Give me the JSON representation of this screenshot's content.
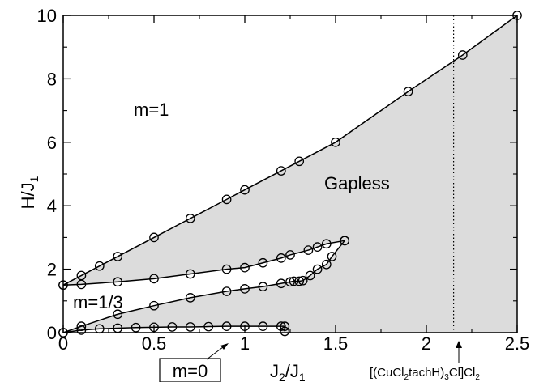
{
  "chart_data": {
    "type": "line",
    "xlabel": {
      "main": "J",
      "sub1": "2",
      "sep": "/J",
      "sub2": "1"
    },
    "ylabel": {
      "main": "H/J",
      "sub": "1"
    },
    "xlim": [
      0,
      2.5
    ],
    "ylim": [
      0,
      10
    ],
    "x_ticks": [
      0,
      0.5,
      1,
      1.5,
      2,
      2.5
    ],
    "x_tick_labels": [
      "0",
      "0.5",
      "1",
      "1.5",
      "2",
      "2.5"
    ],
    "y_ticks": [
      0,
      2,
      4,
      6,
      8,
      10
    ],
    "y_tick_labels": [
      "0",
      "2",
      "4",
      "6",
      "8",
      "10"
    ],
    "grid": false,
    "gapless_fill_color": "#dcdcdc",
    "series": [
      {
        "role": "saturation",
        "points": [
          [
            0,
            1.5
          ],
          [
            0.1,
            1.8
          ],
          [
            0.2,
            2.1
          ],
          [
            0.3,
            2.4
          ],
          [
            0.5,
            3.0
          ],
          [
            0.7,
            3.6
          ],
          [
            0.9,
            4.2
          ],
          [
            1.0,
            4.5
          ],
          [
            1.2,
            5.1
          ],
          [
            1.3,
            5.4
          ],
          [
            1.5,
            6.0
          ],
          [
            1.9,
            7.6
          ],
          [
            2.2,
            8.75
          ],
          [
            2.5,
            10.0
          ]
        ]
      },
      {
        "role": "m13-upper",
        "points": [
          [
            0,
            1.5
          ],
          [
            0.1,
            1.52
          ],
          [
            0.3,
            1.6
          ],
          [
            0.5,
            1.7
          ],
          [
            0.7,
            1.85
          ],
          [
            0.9,
            2.0
          ],
          [
            1.0,
            2.05
          ],
          [
            1.1,
            2.2
          ],
          [
            1.2,
            2.35
          ],
          [
            1.25,
            2.45
          ],
          [
            1.35,
            2.6
          ],
          [
            1.4,
            2.7
          ],
          [
            1.45,
            2.8
          ],
          [
            1.55,
            2.9
          ]
        ]
      },
      {
        "role": "m13-lower",
        "points": [
          [
            0,
            0
          ],
          [
            0.1,
            0.2
          ],
          [
            0.3,
            0.58
          ],
          [
            0.5,
            0.85
          ],
          [
            0.7,
            1.1
          ],
          [
            0.9,
            1.3
          ],
          [
            1.0,
            1.38
          ],
          [
            1.1,
            1.45
          ],
          [
            1.2,
            1.55
          ],
          [
            1.25,
            1.6
          ],
          [
            1.27,
            1.62
          ],
          [
            1.3,
            1.62
          ],
          [
            1.32,
            1.64
          ],
          [
            1.36,
            1.8
          ],
          [
            1.4,
            2.0
          ],
          [
            1.45,
            2.15
          ],
          [
            1.48,
            2.4
          ],
          [
            1.55,
            2.9
          ]
        ]
      },
      {
        "role": "m0",
        "points": [
          [
            0,
            0
          ],
          [
            0.1,
            0.08
          ],
          [
            0.2,
            0.12
          ],
          [
            0.3,
            0.14
          ],
          [
            0.4,
            0.16
          ],
          [
            0.5,
            0.17
          ],
          [
            0.6,
            0.18
          ],
          [
            0.7,
            0.18
          ],
          [
            0.8,
            0.19
          ],
          [
            0.9,
            0.2
          ],
          [
            1.0,
            0.2
          ],
          [
            1.1,
            0.2
          ],
          [
            1.2,
            0.2
          ],
          [
            1.22,
            0.2
          ],
          [
            1.22,
            0.04
          ]
        ]
      }
    ],
    "dotted_vline_x": 2.15,
    "annotations": {
      "m1": "m=1",
      "m13": "m=1/3",
      "m0": "m=0",
      "gapless": "Gapless",
      "compound": {
        "p1": "[(CuCl",
        "s1": "2",
        "p2": "tachH)",
        "s2": "3",
        "p3": "Cl]Cl",
        "s3": "2"
      }
    }
  }
}
